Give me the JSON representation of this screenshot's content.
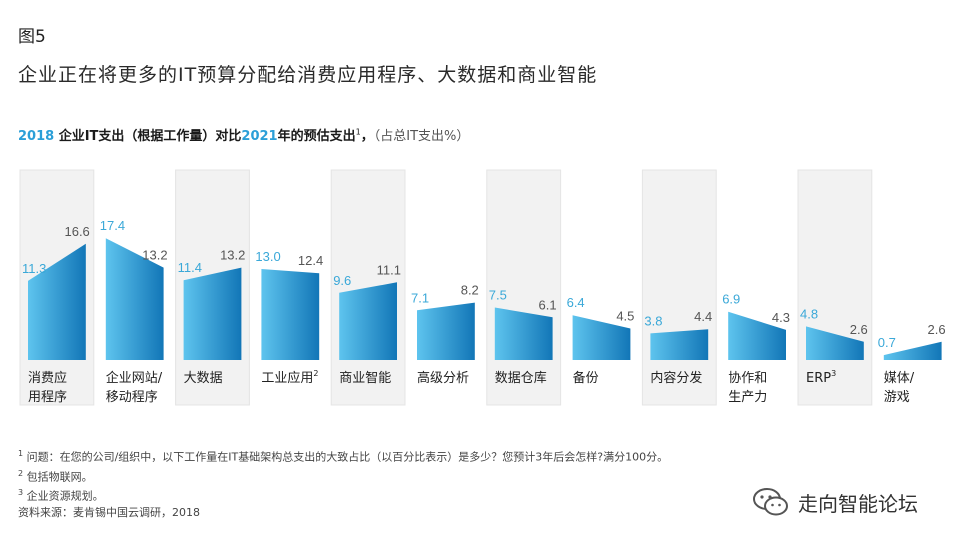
{
  "figure_label": "图5",
  "main_title": "企业正在将更多的IT预算分配给消费应用程序、大数据和商业智能",
  "subtitle": {
    "part1": "2018",
    "part2": " 企业IT支出（根据工作量）对比",
    "part3": "2021",
    "part4": "年的预估支出",
    "sup": "1",
    "part5": "，",
    "unit": "（占总IT支出%）"
  },
  "colors": {
    "accent": "#2b9fd8",
    "bar_light": "#5ec4ee",
    "bar_dark": "#1276b7",
    "panel": "#f2f2f2",
    "value_2018": "#3aa8d8",
    "value_2021": "#555555"
  },
  "chart_data": {
    "type": "bar",
    "series": [
      {
        "name": "2018",
        "values": [
          11.3,
          17.4,
          11.4,
          13.0,
          9.6,
          7.1,
          7.5,
          6.4,
          3.8,
          6.9,
          4.8,
          0.7
        ]
      },
      {
        "name": "2021",
        "values": [
          16.6,
          13.2,
          13.2,
          12.4,
          11.1,
          8.2,
          6.1,
          4.5,
          4.4,
          4.3,
          2.6,
          2.6
        ]
      }
    ],
    "categories": [
      {
        "lines": [
          "消费应",
          "用程序"
        ],
        "sup": ""
      },
      {
        "lines": [
          "企业网站/",
          "移动程序"
        ],
        "sup": ""
      },
      {
        "lines": [
          "大数据"
        ],
        "sup": ""
      },
      {
        "lines": [
          "工业应用"
        ],
        "sup": "2"
      },
      {
        "lines": [
          "商业智能"
        ],
        "sup": ""
      },
      {
        "lines": [
          "高级分析"
        ],
        "sup": ""
      },
      {
        "lines": [
          "数据仓库"
        ],
        "sup": ""
      },
      {
        "lines": [
          "备份"
        ],
        "sup": ""
      },
      {
        "lines": [
          "内容分发"
        ],
        "sup": ""
      },
      {
        "lines": [
          "协作和",
          "生产力"
        ],
        "sup": ""
      },
      {
        "lines": [
          "ERP"
        ],
        "sup": "3"
      },
      {
        "lines": [
          "媒体/",
          "游戏"
        ],
        "sup": ""
      }
    ],
    "shaded_columns": [
      0,
      2,
      4,
      6,
      8,
      10
    ],
    "ylim": [
      0,
      20
    ]
  },
  "footnotes": [
    {
      "sup": "1",
      "text": "问题：在您的公司/组织中，以下工作量在IT基础架构总支出的大致占比（以百分比表示）是多少？您预计3年后会怎样?满分100分。"
    },
    {
      "sup": "2",
      "text": "包括物联网。"
    },
    {
      "sup": "3",
      "text": "企业资源规划。"
    },
    {
      "sup": "",
      "text": "资料来源：麦肯锡中国云调研，2018"
    }
  ],
  "watermark": {
    "text": "走向智能论坛",
    "icon": "wechat-icon"
  }
}
